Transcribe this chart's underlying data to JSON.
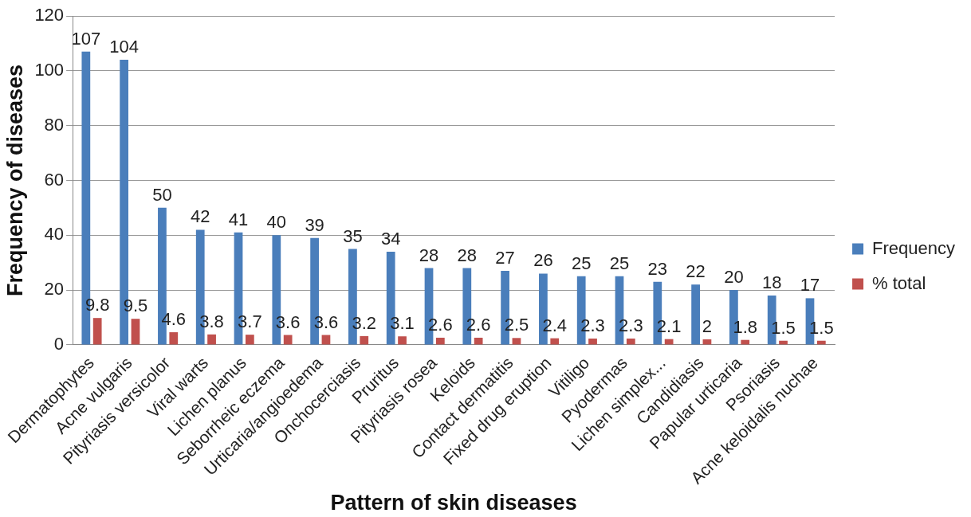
{
  "chart_data": {
    "type": "bar",
    "xlabel": "Pattern of skin diseases",
    "ylabel": "Frequency of diseases",
    "categories": [
      "Dermatophytes",
      "Acne vulgaris",
      "Pityriasis versicolor",
      "Viral warts",
      "Lichen planus",
      "Seborrheic eczema",
      "Urticaria/angioedema",
      "Onchocerciasis",
      "Pruritus",
      "Pityriasis rosea",
      "Keloids",
      "Contact dermatitis",
      "Fixed drug eruption",
      "Vitiligo",
      "Pyodermas",
      "Lichen simplex...",
      "Candidiasis",
      "Papular urticaria",
      "Psoriasis",
      "Acne keloidalis nuchae"
    ],
    "series": [
      {
        "name": "Frequency",
        "color": "#4a7ebb",
        "values": [
          107,
          104,
          50,
          42,
          41,
          40,
          39,
          35,
          34,
          28,
          28,
          27,
          26,
          25,
          25,
          23,
          22,
          20,
          18,
          17
        ]
      },
      {
        "name": "% total",
        "color": "#c0504d",
        "values": [
          9.8,
          9.5,
          4.6,
          3.8,
          3.7,
          3.6,
          3.6,
          3.2,
          3.1,
          2.6,
          2.6,
          2.5,
          2.4,
          2.3,
          2.3,
          2.1,
          2,
          1.8,
          1.5,
          1.5
        ]
      }
    ],
    "ylim": [
      0,
      120
    ],
    "yticks": [
      0,
      20,
      40,
      60,
      80,
      100,
      120
    ],
    "grid": "y",
    "legend": "right",
    "data_labels": true
  }
}
